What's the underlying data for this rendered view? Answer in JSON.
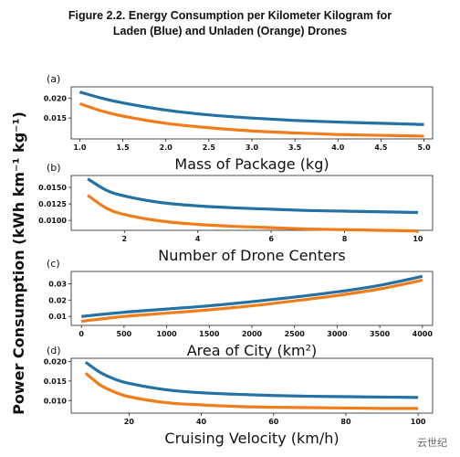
{
  "figure": {
    "title_line1": "Figure 2.2. Energy Consumption per Kilometer Kilogram for",
    "title_line2": "Laden (Blue) and Unladen (Orange) Drones",
    "ylabel": "Power Consumption (kWh km⁻¹ kg⁻¹)",
    "colors": {
      "laden": "#2471a3",
      "unladen": "#f07c1a"
    }
  },
  "watermark": "云世纪",
  "chart_data": [
    {
      "panel": "(a)",
      "type": "line",
      "xlabel": "Mass of Package (kg)",
      "xlim": [
        0.9,
        5.1
      ],
      "ylim": [
        0.0098,
        0.0228
      ],
      "xticks": [
        1.0,
        1.5,
        2.0,
        2.5,
        3.0,
        3.5,
        4.0,
        4.5,
        5.0
      ],
      "xtick_labels": [
        "1.0",
        "1.5",
        "2.0",
        "2.5",
        "3.0",
        "3.5",
        "4.0",
        "4.5",
        "5.0"
      ],
      "yticks": [
        0.015,
        0.02
      ],
      "ytick_labels": [
        "0.015",
        "0.020"
      ],
      "grid": false,
      "series": [
        {
          "color": "laden",
          "x": [
            1.0,
            1.25,
            1.5,
            2.0,
            2.5,
            3.0,
            3.5,
            4.0,
            4.5,
            5.0
          ],
          "y": [
            0.0215,
            0.02,
            0.0188,
            0.017,
            0.0158,
            0.015,
            0.0144,
            0.014,
            0.0137,
            0.0134
          ]
        },
        {
          "color": "unladen",
          "x": [
            1.0,
            1.25,
            1.5,
            2.0,
            2.5,
            3.0,
            3.5,
            4.0,
            4.5,
            5.0
          ],
          "y": [
            0.0186,
            0.0168,
            0.0155,
            0.0137,
            0.0126,
            0.0118,
            0.0113,
            0.0109,
            0.0107,
            0.0105
          ]
        }
      ]
    },
    {
      "panel": "(b)",
      "type": "line",
      "xlabel": "Number of Drone Centers",
      "xlim": [
        0.55,
        10.4
      ],
      "ylim": [
        0.0085,
        0.0168
      ],
      "xticks": [
        2,
        4,
        6,
        8,
        10
      ],
      "xtick_labels": [
        "2",
        "4",
        "6",
        "8",
        "10"
      ],
      "yticks": [
        0.01,
        0.0125,
        0.015
      ],
      "ytick_labels": [
        "0.0100",
        "0.0125",
        "0.0150"
      ],
      "grid": false,
      "series": [
        {
          "color": "laden",
          "x": [
            1,
            1.5,
            2,
            3,
            4,
            5,
            6,
            7,
            8,
            9,
            10
          ],
          "y": [
            0.0163,
            0.0146,
            0.0137,
            0.0127,
            0.0122,
            0.0119,
            0.0117,
            0.0115,
            0.0114,
            0.0113,
            0.0112
          ]
        },
        {
          "color": "unladen",
          "x": [
            1,
            1.5,
            2,
            3,
            4,
            5,
            6,
            7,
            8,
            9,
            10
          ],
          "y": [
            0.0138,
            0.0119,
            0.0109,
            0.0099,
            0.0094,
            0.0091,
            0.0089,
            0.0087,
            0.0086,
            0.0085,
            0.0084
          ]
        }
      ]
    },
    {
      "panel": "(c)",
      "type": "line",
      "xlabel": "Area of City (km²)",
      "xlim": [
        -120,
        4120
      ],
      "ylim": [
        0.0045,
        0.0375
      ],
      "xticks": [
        0,
        500,
        1000,
        1500,
        2000,
        2500,
        3000,
        3500,
        4000
      ],
      "xtick_labels": [
        "0",
        "500",
        "1000",
        "1500",
        "2000",
        "2500",
        "3000",
        "3500",
        "4000"
      ],
      "yticks": [
        0.01,
        0.02,
        0.03
      ],
      "ytick_labels": [
        "0.01",
        "0.02",
        "0.03"
      ],
      "grid": false,
      "series": [
        {
          "color": "laden",
          "x": [
            0,
            500,
            1000,
            1500,
            2000,
            2500,
            3000,
            3500,
            4000
          ],
          "y": [
            0.01,
            0.0125,
            0.0145,
            0.0165,
            0.019,
            0.0218,
            0.025,
            0.029,
            0.0345
          ]
        },
        {
          "color": "unladen",
          "x": [
            0,
            500,
            1000,
            1500,
            2000,
            2500,
            3000,
            3500,
            4000
          ],
          "y": [
            0.007,
            0.01,
            0.012,
            0.014,
            0.0165,
            0.0195,
            0.0228,
            0.0268,
            0.0322
          ]
        }
      ]
    },
    {
      "panel": "(d)",
      "type": "line",
      "xlabel": "Cruising Velocity (km/h)",
      "xlim": [
        4,
        104
      ],
      "ylim": [
        0.0068,
        0.0208
      ],
      "xticks": [
        20,
        40,
        60,
        80,
        100
      ],
      "xtick_labels": [
        "20",
        "40",
        "60",
        "80",
        "100"
      ],
      "yticks": [
        0.01,
        0.015,
        0.02
      ],
      "ytick_labels": [
        "0.010",
        "0.015",
        "0.020"
      ],
      "grid": false,
      "series": [
        {
          "color": "laden",
          "x": [
            8,
            12,
            16,
            20,
            30,
            40,
            50,
            60,
            70,
            80,
            90,
            100
          ],
          "y": [
            0.0198,
            0.0172,
            0.0155,
            0.0144,
            0.0128,
            0.012,
            0.0116,
            0.0113,
            0.0111,
            0.011,
            0.0109,
            0.0108
          ]
        },
        {
          "color": "unladen",
          "x": [
            8,
            12,
            16,
            20,
            30,
            40,
            50,
            60,
            70,
            80,
            90,
            100
          ],
          "y": [
            0.017,
            0.014,
            0.0122,
            0.011,
            0.0095,
            0.0089,
            0.0085,
            0.0083,
            0.0082,
            0.0081,
            0.008,
            0.008
          ]
        }
      ]
    }
  ]
}
